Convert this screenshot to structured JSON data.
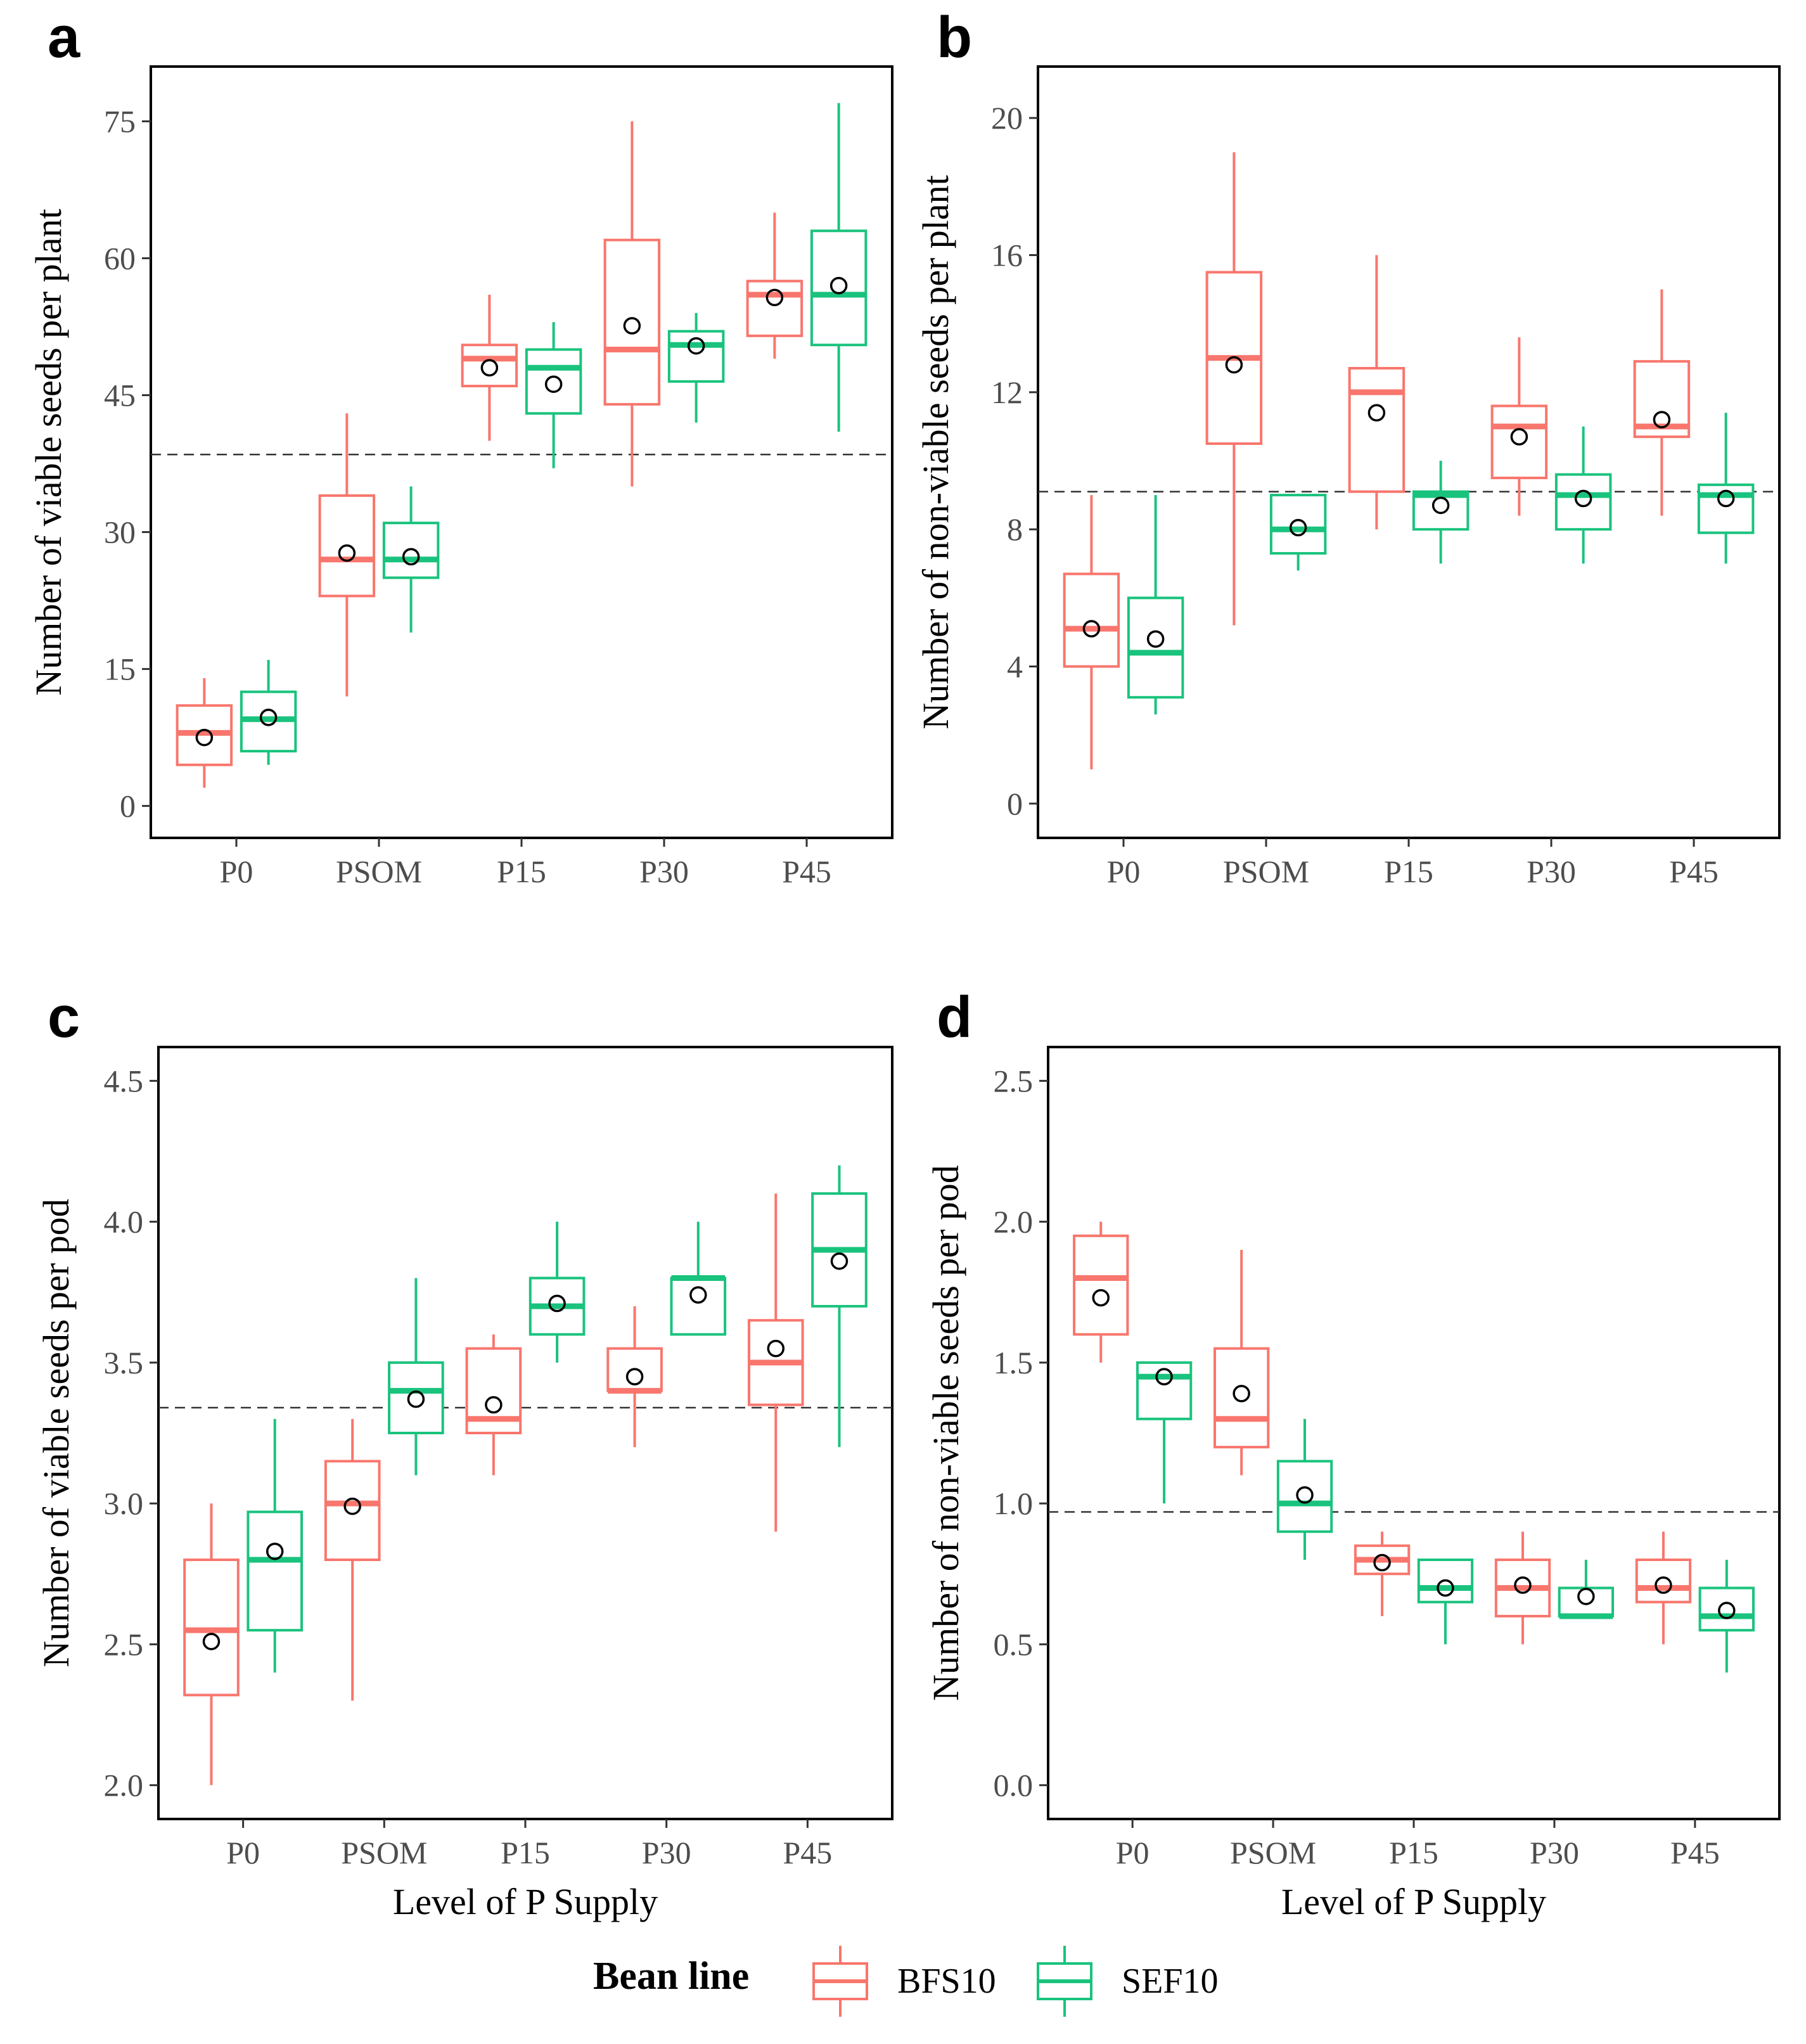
{
  "colors": {
    "BFS10": "#F8766D",
    "SEF10": "#19C37D",
    "axis": "#000000",
    "tick_label": "#4d4d4d"
  },
  "legend": {
    "title": "Bean line",
    "entries": [
      "BFS10",
      "SEF10"
    ]
  },
  "chart_data": [
    {
      "panel": "a",
      "type": "boxplot",
      "ylabel": "Number of viable seeds per plant",
      "xlabel": "",
      "categories": [
        "P0",
        "PSOM",
        "P15",
        "P30",
        "P45"
      ],
      "ylim": [
        -3.5,
        81
      ],
      "yticks": [
        0,
        15,
        30,
        45,
        60,
        75
      ],
      "reference_line": 38.5,
      "series": [
        {
          "name": "BFS10",
          "boxes": [
            {
              "min": 2,
              "q1": 4.5,
              "median": 8,
              "q3": 11,
              "max": 14,
              "mean": 7.5
            },
            {
              "min": 12,
              "q1": 23,
              "median": 27,
              "q3": 34,
              "max": 43,
              "mean": 27.7
            },
            {
              "min": 40,
              "q1": 46,
              "median": 49,
              "q3": 50.5,
              "max": 56,
              "mean": 48
            },
            {
              "min": 35,
              "q1": 44,
              "median": 50,
              "q3": 62,
              "max": 75,
              "mean": 52.6
            },
            {
              "min": 49,
              "q1": 51.5,
              "median": 56,
              "q3": 57.5,
              "max": 65,
              "mean": 55.7
            }
          ]
        },
        {
          "name": "SEF10",
          "boxes": [
            {
              "min": 4.5,
              "q1": 6,
              "median": 9.5,
              "q3": 12.5,
              "max": 16,
              "mean": 9.7
            },
            {
              "min": 19,
              "q1": 25,
              "median": 27,
              "q3": 31,
              "max": 35,
              "mean": 27.3
            },
            {
              "min": 37,
              "q1": 43,
              "median": 48,
              "q3": 50,
              "max": 53,
              "mean": 46.2
            },
            {
              "min": 42,
              "q1": 46.5,
              "median": 50.5,
              "q3": 52,
              "max": 54,
              "mean": 50.4
            },
            {
              "min": 41,
              "q1": 50.5,
              "median": 56,
              "q3": 63,
              "max": 77,
              "mean": 57
            }
          ]
        }
      ]
    },
    {
      "panel": "b",
      "type": "boxplot",
      "ylabel": "Number of non-viable seeds per plant",
      "xlabel": "",
      "categories": [
        "P0",
        "PSOM",
        "P15",
        "P30",
        "P45"
      ],
      "ylim": [
        -1,
        21.5
      ],
      "yticks": [
        0,
        4,
        8,
        12,
        16,
        20
      ],
      "reference_line": 9.1,
      "series": [
        {
          "name": "BFS10",
          "boxes": [
            {
              "min": 1,
              "q1": 4,
              "median": 5.1,
              "q3": 6.7,
              "max": 9,
              "mean": 5.1
            },
            {
              "min": 5.2,
              "q1": 10.5,
              "median": 13,
              "q3": 15.5,
              "max": 19,
              "mean": 12.8
            },
            {
              "min": 8,
              "q1": 9.1,
              "median": 12,
              "q3": 12.7,
              "max": 16,
              "mean": 11.4
            },
            {
              "min": 8.4,
              "q1": 9.5,
              "median": 11,
              "q3": 11.6,
              "max": 13.6,
              "mean": 10.7
            },
            {
              "min": 8.4,
              "q1": 10.7,
              "median": 11,
              "q3": 12.9,
              "max": 15,
              "mean": 11.2
            }
          ]
        },
        {
          "name": "SEF10",
          "boxes": [
            {
              "min": 2.6,
              "q1": 3.1,
              "median": 4.4,
              "q3": 6,
              "max": 9,
              "mean": 4.8
            },
            {
              "min": 6.8,
              "q1": 7.3,
              "median": 8,
              "q3": 9,
              "max": 9,
              "mean": 8.05
            },
            {
              "min": 7,
              "q1": 8,
              "median": 9,
              "q3": 9.1,
              "max": 10,
              "mean": 8.7
            },
            {
              "min": 7,
              "q1": 8,
              "median": 9,
              "q3": 9.6,
              "max": 11,
              "mean": 8.9
            },
            {
              "min": 7,
              "q1": 7.9,
              "median": 9,
              "q3": 9.3,
              "max": 11.4,
              "mean": 8.9
            }
          ]
        }
      ]
    },
    {
      "panel": "c",
      "type": "boxplot",
      "ylabel": "Number of viable seeds per pod",
      "xlabel": "Level of P Supply",
      "categories": [
        "P0",
        "PSOM",
        "P15",
        "P30",
        "P45"
      ],
      "ylim": [
        1.88,
        4.62
      ],
      "yticks": [
        2.0,
        2.5,
        3.0,
        3.5,
        4.0,
        4.5
      ],
      "reference_line": 3.34,
      "series": [
        {
          "name": "BFS10",
          "boxes": [
            {
              "min": 2.0,
              "q1": 2.32,
              "median": 2.55,
              "q3": 2.8,
              "max": 3.0,
              "mean": 2.51
            },
            {
              "min": 2.3,
              "q1": 2.8,
              "median": 3.0,
              "q3": 3.15,
              "max": 3.3,
              "mean": 2.99
            },
            {
              "min": 3.1,
              "q1": 3.25,
              "median": 3.3,
              "q3": 3.55,
              "max": 3.6,
              "mean": 3.35
            },
            {
              "min": 3.2,
              "q1": 3.4,
              "median": 3.4,
              "q3": 3.55,
              "max": 3.7,
              "mean": 3.45
            },
            {
              "min": 2.9,
              "q1": 3.35,
              "median": 3.5,
              "q3": 3.65,
              "max": 4.1,
              "mean": 3.55
            }
          ]
        },
        {
          "name": "SEF10",
          "boxes": [
            {
              "min": 2.4,
              "q1": 2.55,
              "median": 2.8,
              "q3": 2.97,
              "max": 3.3,
              "mean": 2.83
            },
            {
              "min": 3.1,
              "q1": 3.25,
              "median": 3.4,
              "q3": 3.5,
              "max": 3.8,
              "mean": 3.37
            },
            {
              "min": 3.5,
              "q1": 3.6,
              "median": 3.7,
              "q3": 3.8,
              "max": 4.0,
              "mean": 3.71
            },
            {
              "min": 3.6,
              "q1": 3.6,
              "median": 3.8,
              "q3": 3.8,
              "max": 4.0,
              "mean": 3.74
            },
            {
              "min": 3.2,
              "q1": 3.7,
              "median": 3.9,
              "q3": 4.1,
              "max": 4.2,
              "mean": 3.86
            }
          ]
        }
      ]
    },
    {
      "panel": "d",
      "type": "boxplot",
      "ylabel": "Number of non-viable seeds per pod",
      "xlabel": "Level of P Supply",
      "categories": [
        "P0",
        "PSOM",
        "P15",
        "P30",
        "P45"
      ],
      "ylim": [
        -0.12,
        2.62
      ],
      "yticks": [
        0.0,
        0.5,
        1.0,
        1.5,
        2.0,
        2.5
      ],
      "reference_line": 0.97,
      "series": [
        {
          "name": "BFS10",
          "boxes": [
            {
              "min": 1.5,
              "q1": 1.6,
              "median": 1.8,
              "q3": 1.95,
              "max": 2.0,
              "mean": 1.73
            },
            {
              "min": 1.1,
              "q1": 1.2,
              "median": 1.3,
              "q3": 1.55,
              "max": 1.9,
              "mean": 1.39
            },
            {
              "min": 0.6,
              "q1": 0.75,
              "median": 0.8,
              "q3": 0.85,
              "max": 0.9,
              "mean": 0.79
            },
            {
              "min": 0.5,
              "q1": 0.6,
              "median": 0.7,
              "q3": 0.8,
              "max": 0.9,
              "mean": 0.71
            },
            {
              "min": 0.5,
              "q1": 0.65,
              "median": 0.7,
              "q3": 0.8,
              "max": 0.9,
              "mean": 0.71
            }
          ]
        },
        {
          "name": "SEF10",
          "boxes": [
            {
              "min": 1.0,
              "q1": 1.3,
              "median": 1.45,
              "q3": 1.5,
              "max": 1.5,
              "mean": 1.45
            },
            {
              "min": 0.8,
              "q1": 0.9,
              "median": 1.0,
              "q3": 1.15,
              "max": 1.3,
              "mean": 1.03
            },
            {
              "min": 0.5,
              "q1": 0.65,
              "median": 0.7,
              "q3": 0.8,
              "max": 0.8,
              "mean": 0.7
            },
            {
              "min": 0.6,
              "q1": 0.6,
              "median": 0.6,
              "q3": 0.7,
              "max": 0.8,
              "mean": 0.67
            },
            {
              "min": 0.4,
              "q1": 0.55,
              "median": 0.6,
              "q3": 0.7,
              "max": 0.8,
              "mean": 0.62
            }
          ]
        }
      ]
    }
  ]
}
